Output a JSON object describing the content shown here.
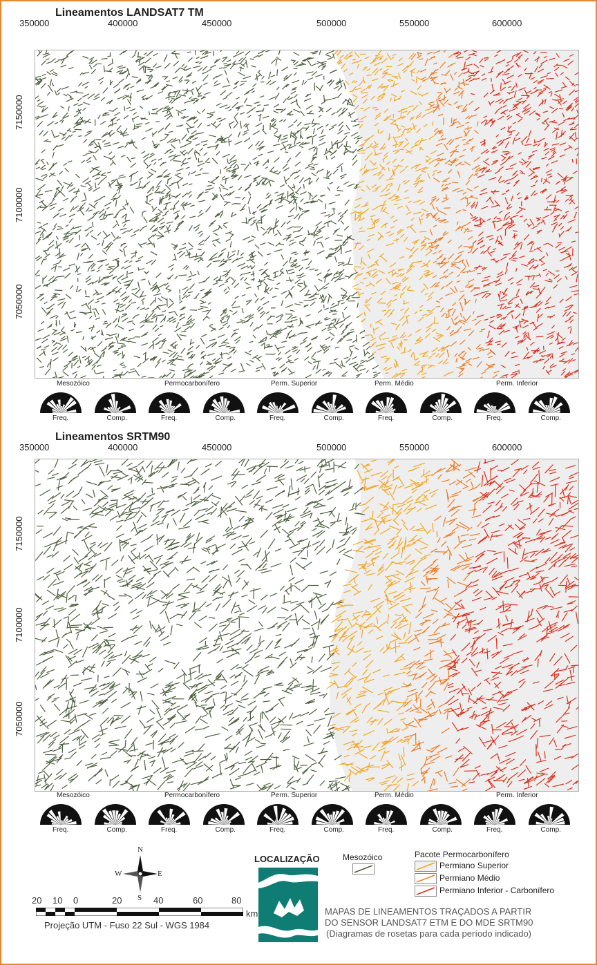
{
  "maps": [
    {
      "title": "Lineamentos LANDSAT7 TM",
      "x_ticks": [
        "350000",
        "400000",
        "450000",
        "500000",
        "550000",
        "600000"
      ],
      "y_ticks": [
        "7150000",
        "7100000",
        "7050000"
      ],
      "rose_groups": [
        "Mesozóico",
        "Permocarbonífero",
        "Perm. Superior",
        "Perm. Médio",
        "Perm. Inferior"
      ],
      "rose_labels": [
        "Freq.",
        "Comp.",
        "Freq.",
        "Comp.",
        "Freq.",
        "Comp.",
        "Freq.",
        "Comp.",
        "Freq.",
        "Comp."
      ]
    },
    {
      "title": "Lineamentos SRTM90",
      "x_ticks": [
        "350000",
        "400000",
        "450000",
        "500000",
        "550000",
        "600000"
      ],
      "y_ticks": [
        "7150000",
        "7100000",
        "7050000"
      ],
      "rose_groups": [
        "Mesozóico",
        "Permocarbonífero",
        "Perm. Superior",
        "Perm. Médio",
        "Perm. Inferior"
      ],
      "rose_labels": [
        "Freq.",
        "Comp.",
        "Freq.",
        "Comp.",
        "Freq.",
        "Comp.",
        "Freq.",
        "Comp.",
        "Freq.",
        "Comp."
      ]
    }
  ],
  "legend": {
    "mesozoic": "Mesozóico",
    "package_title": "Pacote Permocarbonífero",
    "items": [
      "Permiano Superior",
      "Permiano Médio",
      "Permiano Inferior - Carbonífero"
    ]
  },
  "colors": {
    "mesozoic": "#4b5e3c",
    "permiano_superior": "#f4a623",
    "permiano_medio": "#ee7a22",
    "permiano_inferior": "#d8301c",
    "border": "#e8872e",
    "location_teal": "#0f7d73"
  },
  "compass": {
    "n": "N",
    "s": "S",
    "e": "E",
    "w": "W"
  },
  "scale": {
    "labels": [
      "20",
      "10",
      "0",
      "20",
      "40",
      "60",
      "80"
    ],
    "unit": "km",
    "projection": "Projeção UTM - Fuso 22 Sul - WGS 1984"
  },
  "location_title": "LOCALIZAÇÃO",
  "caption": [
    "MAPAS DE LINEAMENTOS TRAÇADOS A PARTIR",
    "DO SENSOR LANDSAT7 ETM E DO MDE SRTM90",
    "(Diagramas de rosetas para cada período indicado)"
  ]
}
